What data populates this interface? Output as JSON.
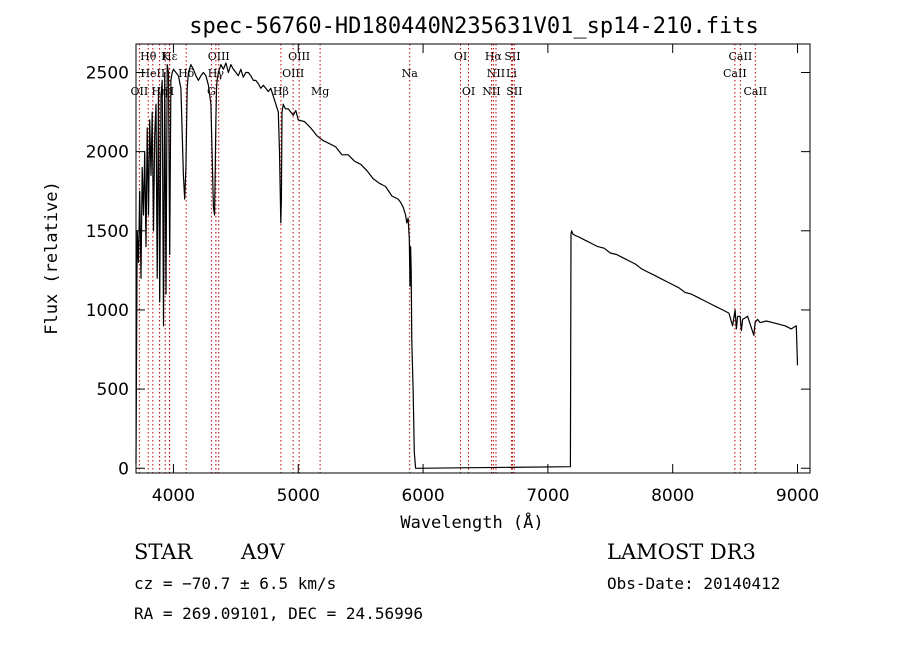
{
  "chart_data": {
    "type": "line",
    "title": "spec-56760-HD180440N235631V01_sp14-210.fits",
    "xlabel": "Wavelength (Å)",
    "ylabel": "Flux (relative)",
    "xlim": [
      3700,
      9100
    ],
    "ylim": [
      -30,
      2680
    ],
    "x_ticks": [
      4000,
      5000,
      6000,
      7000,
      8000,
      9000
    ],
    "y_ticks": [
      0,
      500,
      1000,
      1500,
      2000,
      2500
    ],
    "grid": false,
    "series": [
      {
        "name": "spectrum",
        "x": [
          3700,
          3710,
          3720,
          3730,
          3740,
          3750,
          3760,
          3770,
          3780,
          3790,
          3800,
          3810,
          3820,
          3830,
          3840,
          3850,
          3860,
          3870,
          3880,
          3890,
          3900,
          3910,
          3920,
          3930,
          3940,
          3950,
          3960,
          3970,
          3980,
          3990,
          4000,
          4020,
          4040,
          4060,
          4080,
          4090,
          4100,
          4110,
          4120,
          4140,
          4160,
          4180,
          4200,
          4220,
          4240,
          4260,
          4280,
          4300,
          4320,
          4330,
          4340,
          4345,
          4350,
          4360,
          4380,
          4400,
          4420,
          4440,
          4460,
          4480,
          4500,
          4520,
          4540,
          4560,
          4580,
          4600,
          4620,
          4640,
          4660,
          4680,
          4700,
          4720,
          4740,
          4760,
          4780,
          4800,
          4820,
          4840,
          4850,
          4860,
          4865,
          4870,
          4880,
          4890,
          4900,
          4920,
          4940,
          4960,
          4980,
          5000,
          5050,
          5100,
          5150,
          5200,
          5250,
          5300,
          5350,
          5400,
          5450,
          5500,
          5550,
          5600,
          5650,
          5700,
          5750,
          5800,
          5820,
          5840,
          5860,
          5870,
          5880,
          5890,
          5895,
          5900,
          5905,
          5910,
          5920,
          5930,
          5940,
          7180,
          7185,
          7190,
          7200,
          7220,
          7250,
          7300,
          7350,
          7400,
          7450,
          7500,
          7550,
          7600,
          7650,
          7700,
          7750,
          7800,
          7850,
          7900,
          7950,
          8000,
          8050,
          8100,
          8150,
          8200,
          8250,
          8300,
          8350,
          8400,
          8450,
          8480,
          8500,
          8510,
          8520,
          8540,
          8550,
          8560,
          8580,
          8600,
          8650,
          8660,
          8680,
          8700,
          8750,
          8800,
          8850,
          8900,
          8950,
          8990,
          9000
        ],
        "y": [
          30,
          1500,
          1300,
          1750,
          1200,
          1900,
          1600,
          2000,
          1400,
          2150,
          1600,
          2200,
          1850,
          2250,
          1500,
          2100,
          2300,
          1200,
          2400,
          1050,
          2350,
          2450,
          900,
          2500,
          1100,
          2550,
          2500,
          1350,
          2450,
          2500,
          2520,
          2500,
          2480,
          2400,
          1850,
          1700,
          1900,
          2400,
          2500,
          2550,
          2520,
          2480,
          2450,
          2480,
          2500,
          2480,
          2420,
          2300,
          1650,
          1600,
          2200,
          2400,
          2450,
          2500,
          2550,
          2520,
          2560,
          2500,
          2550,
          2520,
          2500,
          2480,
          2520,
          2470,
          2500,
          2500,
          2480,
          2450,
          2450,
          2430,
          2400,
          2420,
          2400,
          2380,
          2400,
          2350,
          2300,
          2250,
          2000,
          1550,
          1700,
          2250,
          2300,
          2280,
          2270,
          2270,
          2250,
          2230,
          2260,
          2200,
          2190,
          2150,
          2100,
          2070,
          2050,
          2030,
          1980,
          1980,
          1940,
          1920,
          1880,
          1830,
          1800,
          1780,
          1720,
          1700,
          1680,
          1650,
          1600,
          1550,
          1580,
          1450,
          1150,
          1400,
          1250,
          800,
          500,
          100,
          0,
          10,
          1480,
          1500,
          1480,
          1470,
          1460,
          1440,
          1420,
          1400,
          1390,
          1360,
          1350,
          1330,
          1310,
          1290,
          1260,
          1240,
          1220,
          1200,
          1180,
          1160,
          1140,
          1110,
          1100,
          1080,
          1060,
          1040,
          1020,
          1000,
          980,
          900,
          1000,
          880,
          960,
          960,
          870,
          940,
          950,
          960,
          840,
          920,
          940,
          920,
          930,
          920,
          910,
          900,
          880,
          900,
          650
        ]
      }
    ],
    "line_markers": [
      {
        "name": "Hθ",
        "x": 3798,
        "row": 0
      },
      {
        "name": "K",
        "x": 3934,
        "row": 0
      },
      {
        "name": "Hε",
        "x": 3970,
        "row": 0
      },
      {
        "name": "OII",
        "x": 3727,
        "row": 2
      },
      {
        "name": "HeII",
        "x": 3835,
        "row": 1
      },
      {
        "name": "Hη",
        "x": 3889,
        "row": 2
      },
      {
        "name": "H",
        "x": 3968,
        "row": 2
      },
      {
        "name": "Hδ",
        "x": 4102,
        "row": 1
      },
      {
        "name": "OIII",
        "x": 4363,
        "row": 0
      },
      {
        "name": "Hγ",
        "x": 4340,
        "row": 1
      },
      {
        "name": "G",
        "x": 4304,
        "row": 2
      },
      {
        "name": "OIII",
        "x": 5007,
        "row": 0
      },
      {
        "name": "OIII",
        "x": 4959,
        "row": 1
      },
      {
        "name": "Hβ",
        "x": 4861,
        "row": 2
      },
      {
        "name": "Mg",
        "x": 5175,
        "row": 2
      },
      {
        "name": "Na",
        "x": 5893,
        "row": 1
      },
      {
        "name": "OI",
        "x": 6300,
        "row": 0
      },
      {
        "name": "OI",
        "x": 6364,
        "row": 2
      },
      {
        "name": "Hα",
        "x": 6563,
        "row": 0
      },
      {
        "name": "SII",
        "x": 6716,
        "row": 0
      },
      {
        "name": "NII",
        "x": 6584,
        "row": 1
      },
      {
        "name": "Li",
        "x": 6708,
        "row": 1
      },
      {
        "name": "NII",
        "x": 6548,
        "row": 2
      },
      {
        "name": "SII",
        "x": 6731,
        "row": 2
      },
      {
        "name": "CaII",
        "x": 8542,
        "row": 0
      },
      {
        "name": "CaII",
        "x": 8498,
        "row": 1
      },
      {
        "name": "CaII",
        "x": 8662,
        "row": 2
      }
    ]
  },
  "info": {
    "object_class": "STAR",
    "subclass": "A9V",
    "survey": "LAMOST DR3",
    "cz": "cz = −70.7 ± 6.5 km/s",
    "obs_date": "Obs-Date: 20140412",
    "coords": "RA = 269.09101, DEC =  24.56996"
  }
}
